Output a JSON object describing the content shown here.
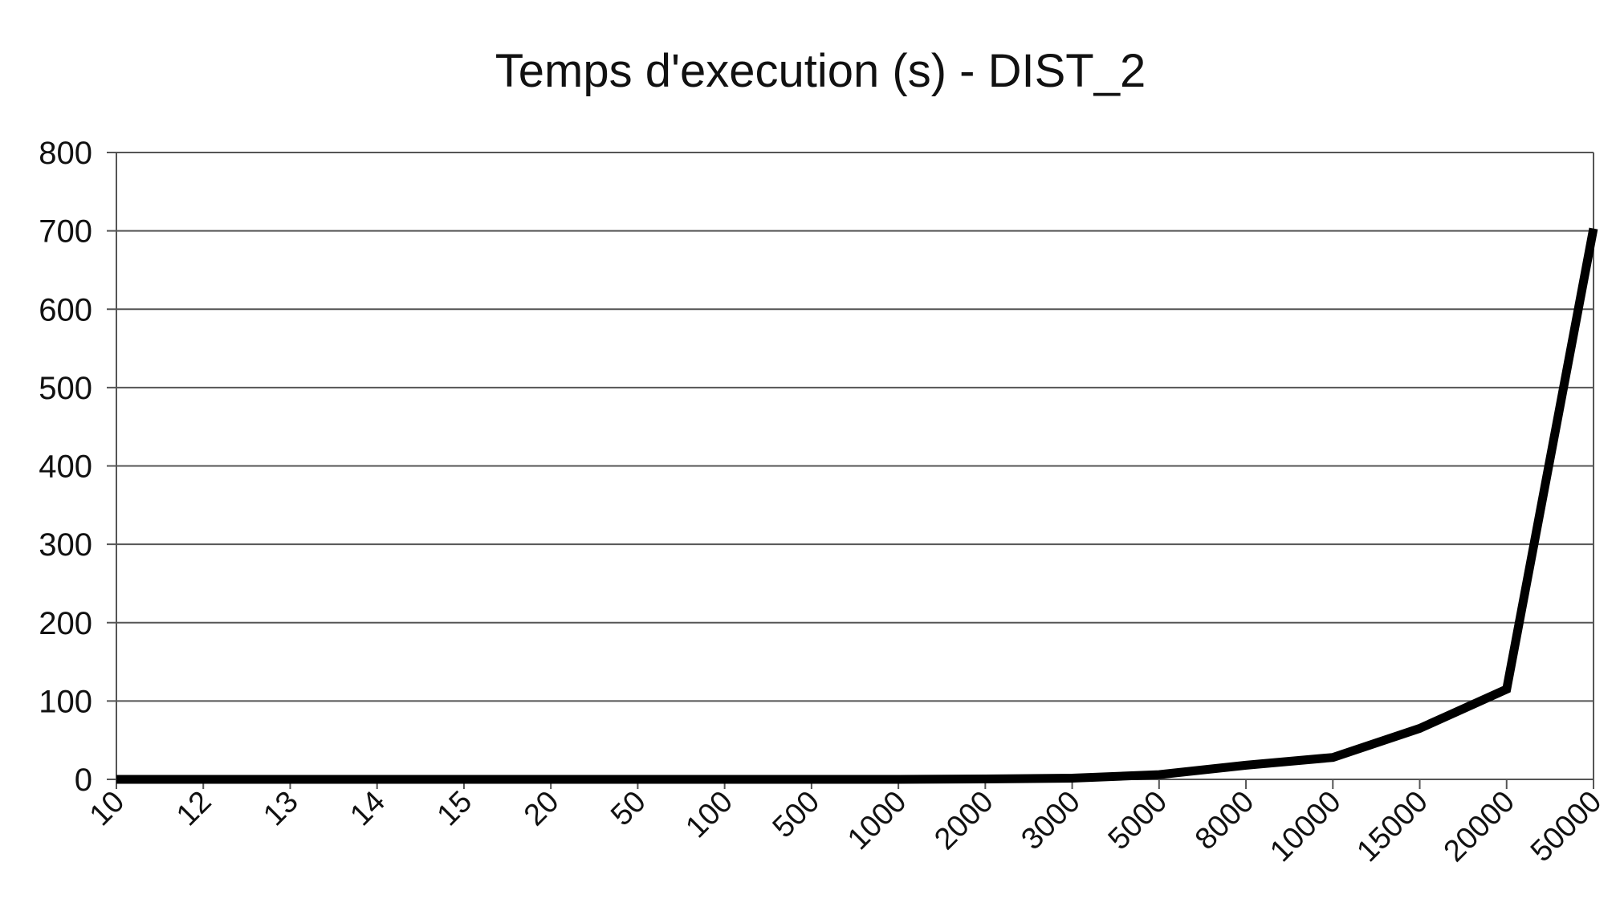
{
  "chart_data": {
    "type": "line",
    "title": "Temps d'execution (s) - DIST_2",
    "xlabel": "",
    "ylabel": "",
    "categories": [
      "10",
      "12",
      "13",
      "14",
      "15",
      "20",
      "50",
      "100",
      "500",
      "1000",
      "2000",
      "3000",
      "5000",
      "8000",
      "10000",
      "15000",
      "20000",
      "50000"
    ],
    "series": [
      {
        "values": [
          0,
          0,
          0,
          0,
          0,
          0,
          0,
          0,
          0,
          0,
          0.5,
          1.5,
          6,
          18,
          28,
          65,
          115,
          703
        ],
        "color": "#000000"
      }
    ],
    "ylim": [
      0,
      800
    ],
    "yticks": [
      0,
      100,
      200,
      300,
      400,
      500,
      600,
      700,
      800
    ],
    "grid": true,
    "legend": "none"
  }
}
